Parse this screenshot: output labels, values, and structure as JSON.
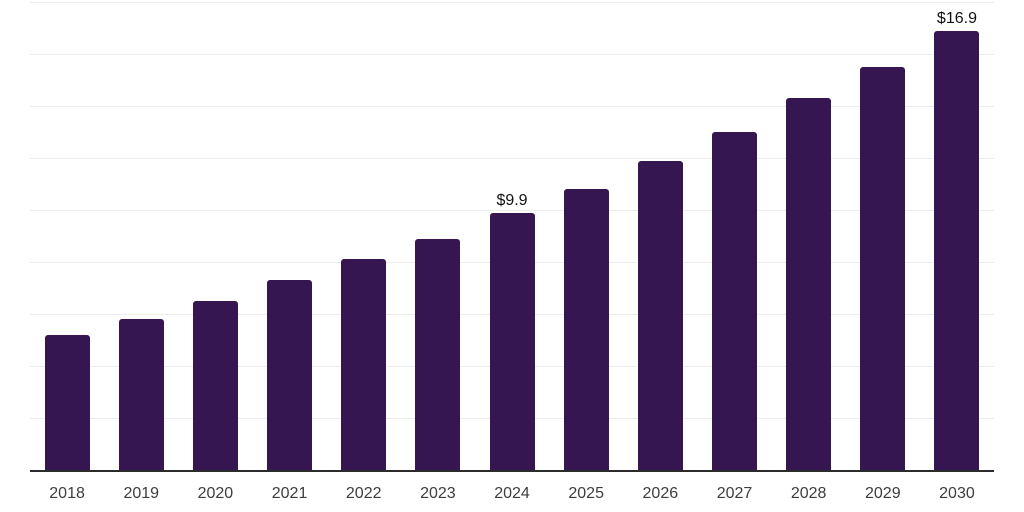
{
  "chart_data": {
    "type": "bar",
    "title": "",
    "xlabel": "",
    "ylabel": "",
    "categories": [
      "2018",
      "2019",
      "2020",
      "2021",
      "2022",
      "2023",
      "2024",
      "2025",
      "2026",
      "2027",
      "2028",
      "2029",
      "2030"
    ],
    "values": [
      5.2,
      5.8,
      6.5,
      7.3,
      8.1,
      8.9,
      9.9,
      10.8,
      11.9,
      13.0,
      14.3,
      15.5,
      16.9
    ],
    "data_labels": [
      "",
      "",
      "",
      "",
      "",
      "",
      "$9.9",
      "",
      "",
      "",
      "",
      "",
      "$16.9"
    ],
    "ylim": [
      0,
      18
    ],
    "grid_step": 2,
    "grid": "horizontal-only",
    "legend": "none",
    "y_tick_labels": "none",
    "colors": {
      "bar": "#361651",
      "gridline": "#ececec",
      "axis_line": "#2b2b2b",
      "x_label_text": "#3d3d3d",
      "data_label_text": "#111111",
      "background": "#ffffff"
    }
  }
}
